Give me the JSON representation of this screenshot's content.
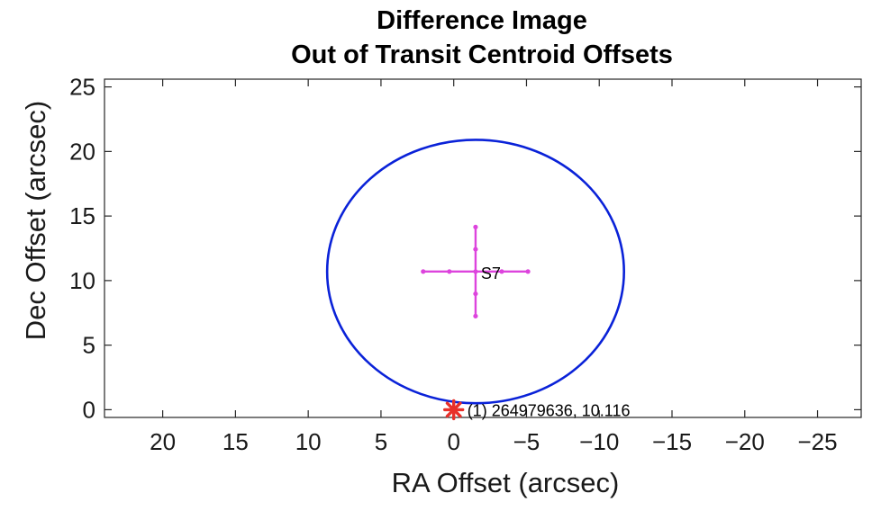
{
  "chart_data": {
    "type": "scatter",
    "title": [
      "Difference Image",
      "Out of Transit Centroid Offsets"
    ],
    "xlabel": "RA Offset (arcsec)",
    "ylabel": "Dec Offset (arcsec)",
    "xlim": [
      24,
      -28
    ],
    "ylim": [
      -0.6,
      25.6
    ],
    "x_reversed": true,
    "xticks": [
      20,
      15,
      10,
      5,
      0,
      -5,
      -10,
      -15,
      -20,
      -25
    ],
    "yticks": [
      0,
      5,
      10,
      15,
      20,
      25
    ],
    "grid": false,
    "target": {
      "label": "(1) 264979636, 10.116",
      "x": 0,
      "y": 0,
      "marker": "asterisk",
      "color": "#e8302a"
    },
    "centroid": {
      "label": "S7",
      "x": -1.5,
      "y": 10.7,
      "x_error": 3.6,
      "y_error": 3.45,
      "color": "#dd44dd"
    },
    "circle": {
      "center_x": -1.5,
      "center_y": 10.7,
      "radius_x": 10.2,
      "radius_y": 10.2,
      "color": "#0a22d8"
    }
  }
}
